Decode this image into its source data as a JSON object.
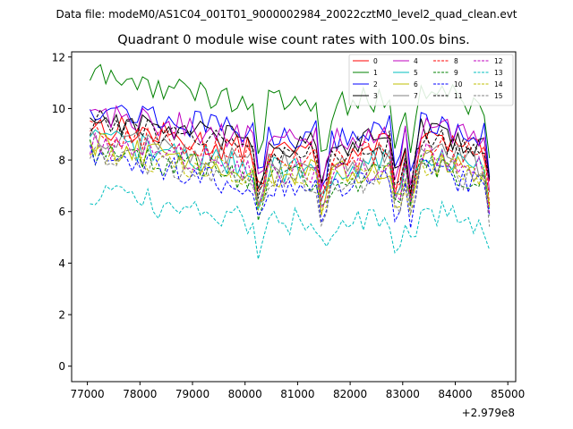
{
  "chart_data": {
    "type": "line",
    "suptitle": "Data file: modeM0/AS1C04_001T01_9000002984_20022cztM0_level2_quad_clean.evt",
    "title": "Quadrant 0 module wise count rates with 100.0s bins.",
    "xlabel": "",
    "ylabel": "",
    "x_offset_label": "+2.979e8",
    "xlim": [
      76700,
      85150
    ],
    "ylim": [
      -0.6,
      12.2
    ],
    "x_ticks": [
      77000,
      78000,
      79000,
      80000,
      81000,
      82000,
      83000,
      84000,
      85000
    ],
    "x_tick_labels": [
      "77000",
      "78000",
      "79000",
      "80000",
      "81000",
      "82000",
      "83000",
      "84000",
      "85000"
    ],
    "y_ticks": [
      0,
      2,
      4,
      6,
      8,
      10,
      12
    ],
    "y_tick_labels": [
      "0",
      "2",
      "4",
      "6",
      "8",
      "10",
      "12"
    ],
    "legend_position": "top-right",
    "segments": [
      {
        "start": 77050,
        "end": 80250,
        "step": 100
      },
      {
        "start": 80350,
        "end": 81450,
        "step": 100
      },
      {
        "start": 81550,
        "end": 82850,
        "step": 100
      },
      {
        "start": 82950,
        "end": 83150,
        "step": 100
      },
      {
        "start": 83250,
        "end": 84650,
        "step": 100
      }
    ],
    "series": [
      {
        "name": "0",
        "color": "#ff0000",
        "dash": "solid",
        "level": 8.3
      },
      {
        "name": "1",
        "color": "#008000",
        "dash": "solid",
        "level": 10.2
      },
      {
        "name": "2",
        "color": "#0000ff",
        "dash": "solid",
        "level": 9.0
      },
      {
        "name": "3",
        "color": "#000000",
        "dash": "solid",
        "level": 8.6
      },
      {
        "name": "4",
        "color": "#bf00bf",
        "dash": "solid",
        "level": 8.8
      },
      {
        "name": "5",
        "color": "#00bfbf",
        "dash": "solid",
        "level": 7.7
      },
      {
        "name": "6",
        "color": "#bfbf00",
        "dash": "solid",
        "level": 7.5
      },
      {
        "name": "7",
        "color": "#808080",
        "dash": "solid",
        "level": 7.9
      },
      {
        "name": "8",
        "color": "#ff0000",
        "dash": "dashed",
        "level": 8.1
      },
      {
        "name": "9",
        "color": "#008000",
        "dash": "dashed",
        "level": 7.3
      },
      {
        "name": "10",
        "color": "#0000ff",
        "dash": "dashed",
        "level": 7.0
      },
      {
        "name": "11",
        "color": "#000000",
        "dash": "dashed",
        "level": 8.4
      },
      {
        "name": "12",
        "color": "#bf00bf",
        "dash": "dashed",
        "level": 7.6
      },
      {
        "name": "13",
        "color": "#00bfbf",
        "dash": "dashed",
        "level": 5.6
      },
      {
        "name": "14",
        "color": "#bfbf00",
        "dash": "dashed",
        "level": 7.4
      },
      {
        "name": "15",
        "color": "#808080",
        "dash": "dashed",
        "level": 7.2
      }
    ]
  }
}
